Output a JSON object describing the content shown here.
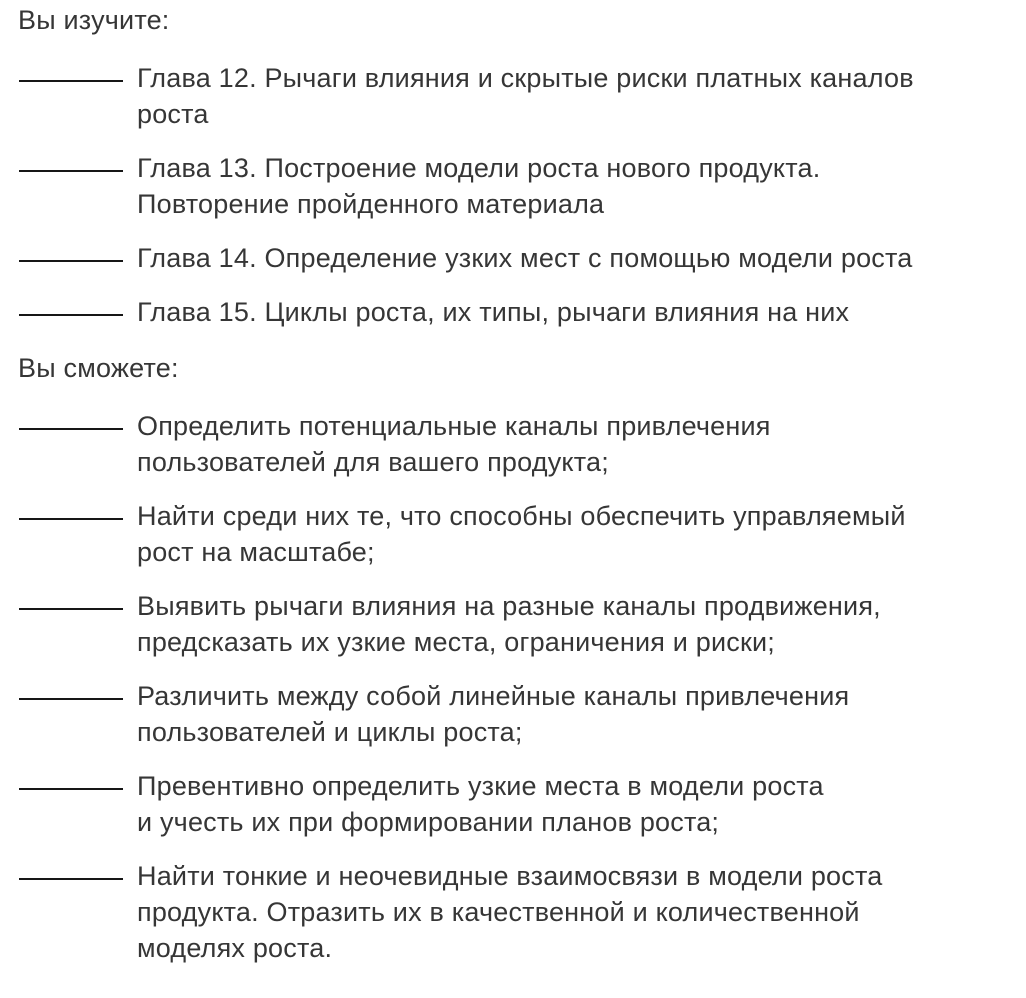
{
  "colors": {
    "background": "#ffffff",
    "text": "#363636",
    "dash": "#161616"
  },
  "sections": [
    {
      "heading": "Вы изучите:",
      "items": [
        {
          "lines": [
            "Глава 12. Рычаги влияния и скрытые риски платных каналов",
            "роста"
          ]
        },
        {
          "lines": [
            "Глава 13. Построение модели роста нового продукта.",
            "Повторение пройденного материала"
          ]
        },
        {
          "lines": [
            "Глава 14. Определение узких мест с помощью модели роста"
          ]
        },
        {
          "lines": [
            "Глава 15. Циклы роста, их типы, рычаги влияния на них"
          ]
        }
      ]
    },
    {
      "heading": "Вы сможете:",
      "items": [
        {
          "lines": [
            "Определить потенциальные каналы привлечения",
            "пользователей для вашего продукта;"
          ]
        },
        {
          "lines": [
            "Найти среди них те, что способны обеспечить управляемый",
            "рост на масштабе;"
          ]
        },
        {
          "lines": [
            "Выявить рычаги влияния на разные каналы продвижения,",
            "предсказать их узкие места, ограничения и риски;"
          ]
        },
        {
          "lines": [
            "Различить между собой линейные каналы привлечения",
            "пользователей и циклы роста;"
          ]
        },
        {
          "lines": [
            "Превентивно определить узкие места в модели роста",
            "и учесть их при формировании планов роста;"
          ]
        },
        {
          "lines": [
            "Найти тонкие и неочевидные взаимосвязи в модели роста",
            "продукта. Отразить их в качественной и количественной",
            "моделях роста."
          ]
        }
      ]
    }
  ]
}
